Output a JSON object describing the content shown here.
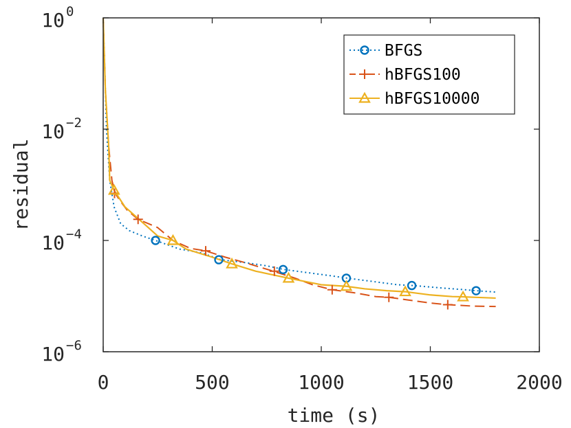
{
  "chart_data": {
    "type": "line",
    "xlabel": "time (s)",
    "ylabel": "residual",
    "xlim": [
      0,
      2000
    ],
    "ylim": [
      1e-06,
      1
    ],
    "yscale": "log",
    "grid": false,
    "legend_position": "top-right",
    "x_ticks": [
      {
        "value": 0,
        "label": "0"
      },
      {
        "value": 500,
        "label": "500"
      },
      {
        "value": 1000,
        "label": "1000"
      },
      {
        "value": 1500,
        "label": "1500"
      },
      {
        "value": 2000,
        "label": "2000"
      }
    ],
    "y_ticks": [
      {
        "value": 1e-06,
        "base": "10",
        "exp": "−6"
      },
      {
        "value": 0.0001,
        "base": "10",
        "exp": "−4"
      },
      {
        "value": 0.01,
        "base": "10",
        "exp": "−2"
      },
      {
        "value": 1,
        "base": "10",
        "exp": "0"
      }
    ],
    "series": [
      {
        "name": "BFGS",
        "color": "#0072BD",
        "line_style": "dotted",
        "marker": "circle",
        "x": [
          0,
          8,
          15,
          30,
          50,
          80,
          120,
          180,
          240,
          350,
          450,
          540,
          650,
          750,
          830,
          950,
          1050,
          1120,
          1250,
          1350,
          1420,
          1550,
          1650,
          1710,
          1800
        ],
        "y": [
          1,
          0.1,
          0.01,
          0.0012,
          0.0004,
          0.0002,
          0.00015,
          0.00012,
          0.0001,
          7e-05,
          6e-05,
          4.5e-05,
          4e-05,
          3.5e-05,
          3e-05,
          2.6e-05,
          2.3e-05,
          2.1e-05,
          1.8e-05,
          1.6e-05,
          1.55e-05,
          1.4e-05,
          1.31e-05,
          1.25e-05,
          1.18e-05
        ],
        "marker_x": [
          240,
          530,
          825,
          1115,
          1415,
          1710
        ],
        "marker_y": [
          0.0001,
          4.5e-05,
          3e-05,
          2.1e-05,
          1.55e-05,
          1.25e-05
        ]
      },
      {
        "name": "hBFGS100",
        "color": "#D95319",
        "line_style": "dashed",
        "marker": "plus",
        "x": [
          0,
          10,
          25,
          40,
          55,
          80,
          110,
          160,
          250,
          320,
          400,
          470,
          560,
          650,
          780,
          880,
          960,
          1050,
          1150,
          1250,
          1310,
          1400,
          1500,
          1580,
          1700,
          1800
        ],
        "y": [
          1,
          0.05,
          0.005,
          0.0012,
          0.0007,
          0.0005,
          0.00035,
          0.00024,
          0.00017,
          0.0001,
          7.2e-05,
          6.5e-05,
          5e-05,
          4e-05,
          2.8e-05,
          2.1e-05,
          1.6e-05,
          1.3e-05,
          1.15e-05,
          9.8e-06,
          9.5e-06,
          8.5e-06,
          7.5e-06,
          7e-06,
          6.6e-06,
          6.5e-06
        ],
        "marker_x": [
          52,
          160,
          470,
          785,
          1050,
          1310,
          1580
        ],
        "marker_y": [
          0.0007,
          0.00024,
          6.5e-05,
          2.8e-05,
          1.3e-05,
          9.5e-06,
          7e-06
        ]
      },
      {
        "name": "hBFGS10000",
        "color": "#EDB120",
        "line_style": "solid",
        "marker": "triangle",
        "x": [
          0,
          10,
          25,
          30,
          50,
          100,
          200,
          250,
          320,
          380,
          500,
          590,
          700,
          850,
          1000,
          1115,
          1200,
          1300,
          1385,
          1500,
          1600,
          1650,
          1800
        ],
        "y": [
          1,
          0.05,
          0.005,
          0.0012,
          0.0008,
          0.0004,
          0.00018,
          0.00012,
          0.0001,
          7e-05,
          5e-05,
          3.8e-05,
          2.8e-05,
          2.1e-05,
          1.6e-05,
          1.5e-05,
          1.35e-05,
          1.25e-05,
          1.2e-05,
          1.05e-05,
          9.8e-06,
          9.7e-06,
          9.2e-06
        ],
        "marker_x": [
          50,
          320,
          590,
          850,
          1115,
          1385,
          1650
        ],
        "marker_y": [
          0.0008,
          0.0001,
          3.8e-05,
          2.1e-05,
          1.5e-05,
          1.2e-05,
          9.7e-06
        ]
      }
    ]
  }
}
